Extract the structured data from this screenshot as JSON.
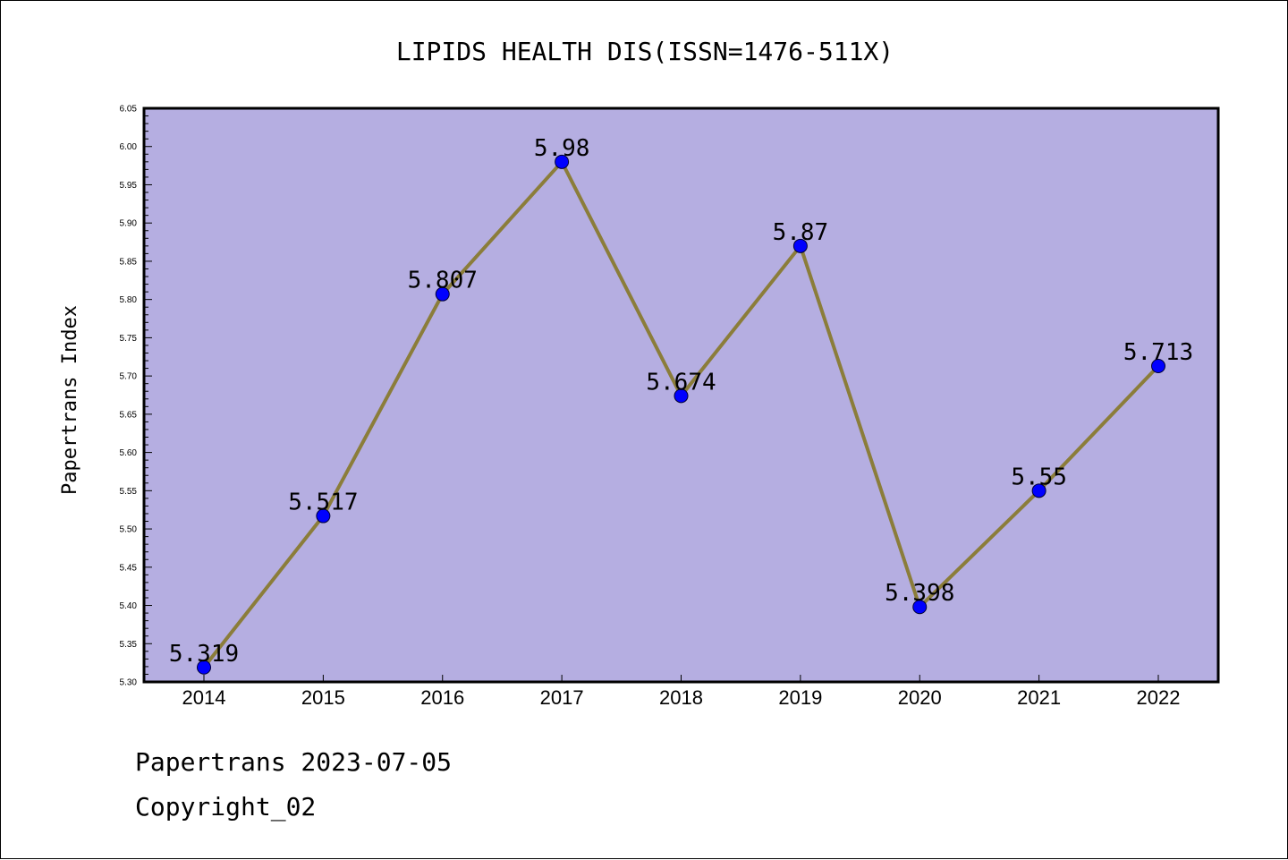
{
  "chart_data": {
    "type": "line",
    "title": "LIPIDS HEALTH DIS(ISSN=1476-511X)",
    "xlabel": "",
    "ylabel": "Papertrans Index",
    "categories": [
      "2014",
      "2015",
      "2016",
      "2017",
      "2018",
      "2019",
      "2020",
      "2021",
      "2022"
    ],
    "series": [
      {
        "values": [
          5.319,
          5.517,
          5.807,
          5.98,
          5.674,
          5.87,
          5.398,
          5.55,
          5.713
        ],
        "labels": [
          "5.319",
          "5.517",
          "5.807",
          "5.98",
          "5.674",
          "5.87",
          "5.398",
          "5.55",
          "5.713"
        ]
      }
    ],
    "ylim": [
      5.3,
      6.05
    ],
    "yticks": [
      "5.30",
      "5.35",
      "5.40",
      "5.45",
      "5.50",
      "5.55",
      "5.60",
      "5.65",
      "5.70",
      "5.75",
      "5.80",
      "5.85",
      "5.90",
      "5.95",
      "6.00",
      "6.05"
    ],
    "grid": false,
    "colors": {
      "plot_background": "#b5aee1",
      "line": "#8b7d3a",
      "marker": "#0000ff"
    }
  },
  "footer": {
    "line1": "Papertrans 2023-07-05",
    "line2": "Copyright_02"
  }
}
